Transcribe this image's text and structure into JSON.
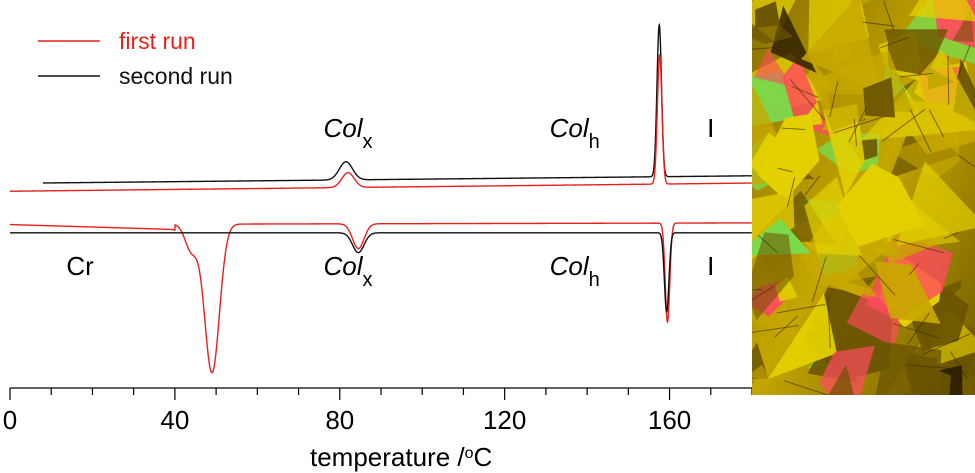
{
  "chart_data": {
    "type": "line",
    "xlabel": "temperature /°C",
    "xlabel_parts": {
      "main": "temperature /",
      "superscript": "o",
      "unit": "C"
    },
    "xlim": [
      0,
      180
    ],
    "x_ticks": [
      0,
      40,
      80,
      120,
      160
    ],
    "x_minor_step": 10,
    "legend": {
      "placement": "top-left",
      "entries": [
        {
          "label": "first run",
          "color": "#e8211d"
        },
        {
          "label": "second run",
          "color": "#111111"
        }
      ]
    },
    "phase_labels": {
      "heating": [
        {
          "base": "Col",
          "sub": "x",
          "x": 82
        },
        {
          "base": "Col",
          "sub": "h",
          "x": 137
        },
        {
          "base": "I",
          "sub": "",
          "x": 170
        }
      ],
      "cooling": [
        {
          "base": "Cr",
          "sub": "",
          "x": 17
        },
        {
          "base": "Col",
          "sub": "x",
          "x": 82
        },
        {
          "base": "Col",
          "sub": "h",
          "x": 137
        },
        {
          "base": "I",
          "sub": "",
          "x": 170
        }
      ]
    },
    "series": [
      {
        "name": "second run",
        "part": "heating",
        "color": "#111111",
        "baseline_start": [
          8,
          0.0
        ],
        "baseline_end": [
          181,
          0.22
        ],
        "peaks": [
          {
            "x": 81.5,
            "height": 0.55,
            "width": 1.6
          },
          {
            "x": 157.5,
            "height": 4.6,
            "width": 0.55
          }
        ]
      },
      {
        "name": "first run",
        "part": "heating",
        "color": "#e8211d",
        "baseline_start": [
          0,
          -0.25
        ],
        "baseline_end": [
          181,
          0.0
        ],
        "peaks": [
          {
            "x": 82,
            "height": 0.45,
            "width": 1.5
          },
          {
            "x": 157.6,
            "height": 3.9,
            "width": 0.55
          }
        ]
      },
      {
        "name": "first run",
        "part": "cooling",
        "color": "#e8211d",
        "baseline_start": [
          0,
          -0.35
        ],
        "baseline_end": [
          181,
          -0.3
        ],
        "plateau": [
          [
            0,
            -0.35
          ],
          [
            40,
            -0.5
          ]
        ],
        "peaks": [
          {
            "x": 49,
            "height": -4.5,
            "width": 1.8
          },
          {
            "x": 44,
            "height": -0.8,
            "width": 1.5
          },
          {
            "x": 84.5,
            "height": -0.75,
            "width": 1.4
          },
          {
            "x": 159.5,
            "height": -3.0,
            "width": 0.55
          }
        ]
      },
      {
        "name": "second run",
        "part": "cooling",
        "color": "#111111",
        "baseline_start": [
          0,
          -0.6
        ],
        "baseline_end": [
          181,
          -0.6
        ],
        "peaks": [
          {
            "x": 84.5,
            "height": -0.6,
            "width": 1.4
          },
          {
            "x": 159.3,
            "height": -2.4,
            "width": 0.55
          }
        ]
      }
    ]
  },
  "micrograph": {
    "name": "polarized optical micrograph",
    "colors": [
      "#c8a800",
      "#e4d000",
      "#6b5400",
      "#ff4a5e",
      "#7cd94a",
      "#2a1c00"
    ]
  }
}
